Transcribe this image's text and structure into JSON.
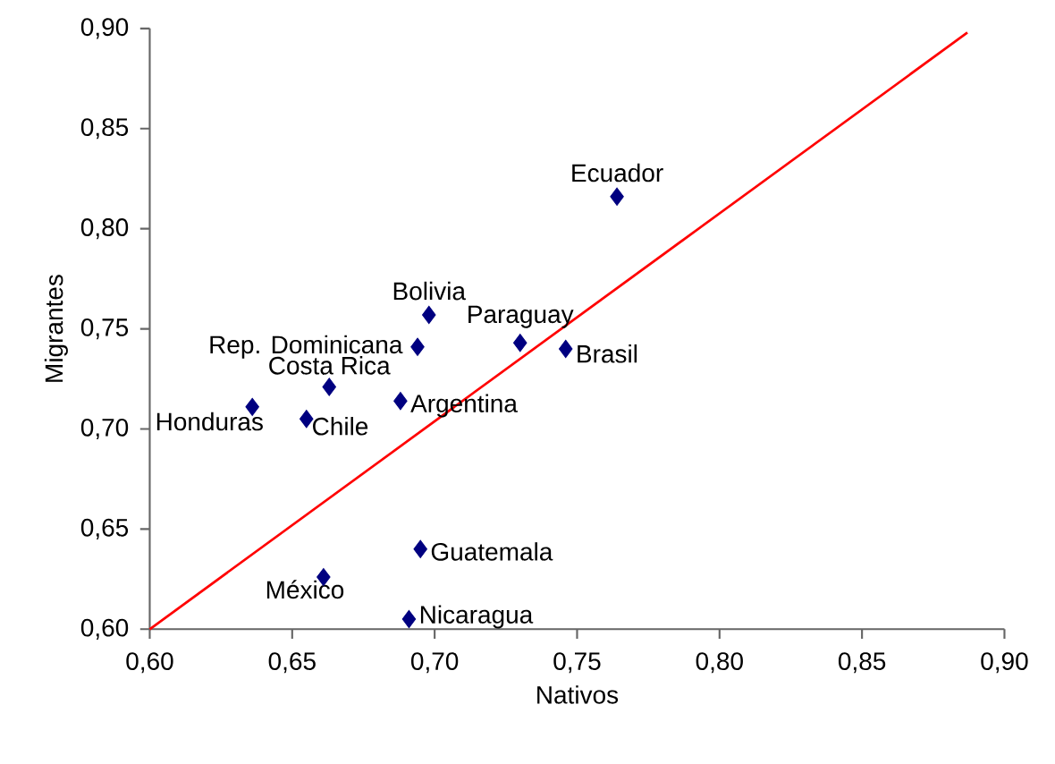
{
  "chart_data": {
    "type": "scatter",
    "xlabel": "Nativos",
    "ylabel": "Migrantes",
    "xlim": [
      0.6,
      0.9
    ],
    "ylim": [
      0.6,
      0.9
    ],
    "xticks": [
      {
        "value": 0.6,
        "label": "0,60"
      },
      {
        "value": 0.65,
        "label": "0,65"
      },
      {
        "value": 0.7,
        "label": "0,70"
      },
      {
        "value": 0.75,
        "label": "0,75"
      },
      {
        "value": 0.8,
        "label": "0,80"
      },
      {
        "value": 0.85,
        "label": "0,85"
      },
      {
        "value": 0.9,
        "label": "0,90"
      }
    ],
    "yticks": [
      {
        "value": 0.6,
        "label": "0,60"
      },
      {
        "value": 0.65,
        "label": "0,65"
      },
      {
        "value": 0.7,
        "label": "0,70"
      },
      {
        "value": 0.75,
        "label": "0,75"
      },
      {
        "value": 0.8,
        "label": "0,80"
      },
      {
        "value": 0.85,
        "label": "0,85"
      },
      {
        "value": 0.9,
        "label": "0,90"
      }
    ],
    "grid": false,
    "series": [
      {
        "marker": "diamond",
        "color": "#000080",
        "x": [
          0.764,
          0.698,
          0.694,
          0.73,
          0.746,
          0.663,
          0.688,
          0.636,
          0.655,
          0.695,
          0.661,
          0.691
        ],
        "values": [
          0.816,
          0.757,
          0.741,
          0.743,
          0.74,
          0.721,
          0.714,
          0.711,
          0.705,
          0.64,
          0.626,
          0.605
        ]
      },
      {
        "type": "line",
        "marker": "none",
        "color": "#ff0000",
        "x": [
          0.6,
          0.887
        ],
        "values": [
          0.6,
          0.898
        ]
      }
    ],
    "annotations": [
      {
        "text": "Ecuador",
        "x": 0.764,
        "y": 0.816
      },
      {
        "text": "Bolivia",
        "x": 0.698,
        "y": 0.757
      },
      {
        "text": "Rep. Dominicana",
        "x": 0.694,
        "y": 0.741
      },
      {
        "text": "Paraguay",
        "x": 0.73,
        "y": 0.743
      },
      {
        "text": "Brasil",
        "x": 0.746,
        "y": 0.74
      },
      {
        "text": "Costa Rica",
        "x": 0.663,
        "y": 0.721
      },
      {
        "text": "Argentina",
        "x": 0.688,
        "y": 0.714
      },
      {
        "text": "Honduras",
        "x": 0.636,
        "y": 0.711
      },
      {
        "text": "Chile",
        "x": 0.655,
        "y": 0.705
      },
      {
        "text": "Guatemala",
        "x": 0.695,
        "y": 0.64
      },
      {
        "text": "México",
        "x": 0.661,
        "y": 0.626
      },
      {
        "text": "Nicaragua",
        "x": 0.691,
        "y": 0.605
      }
    ]
  }
}
